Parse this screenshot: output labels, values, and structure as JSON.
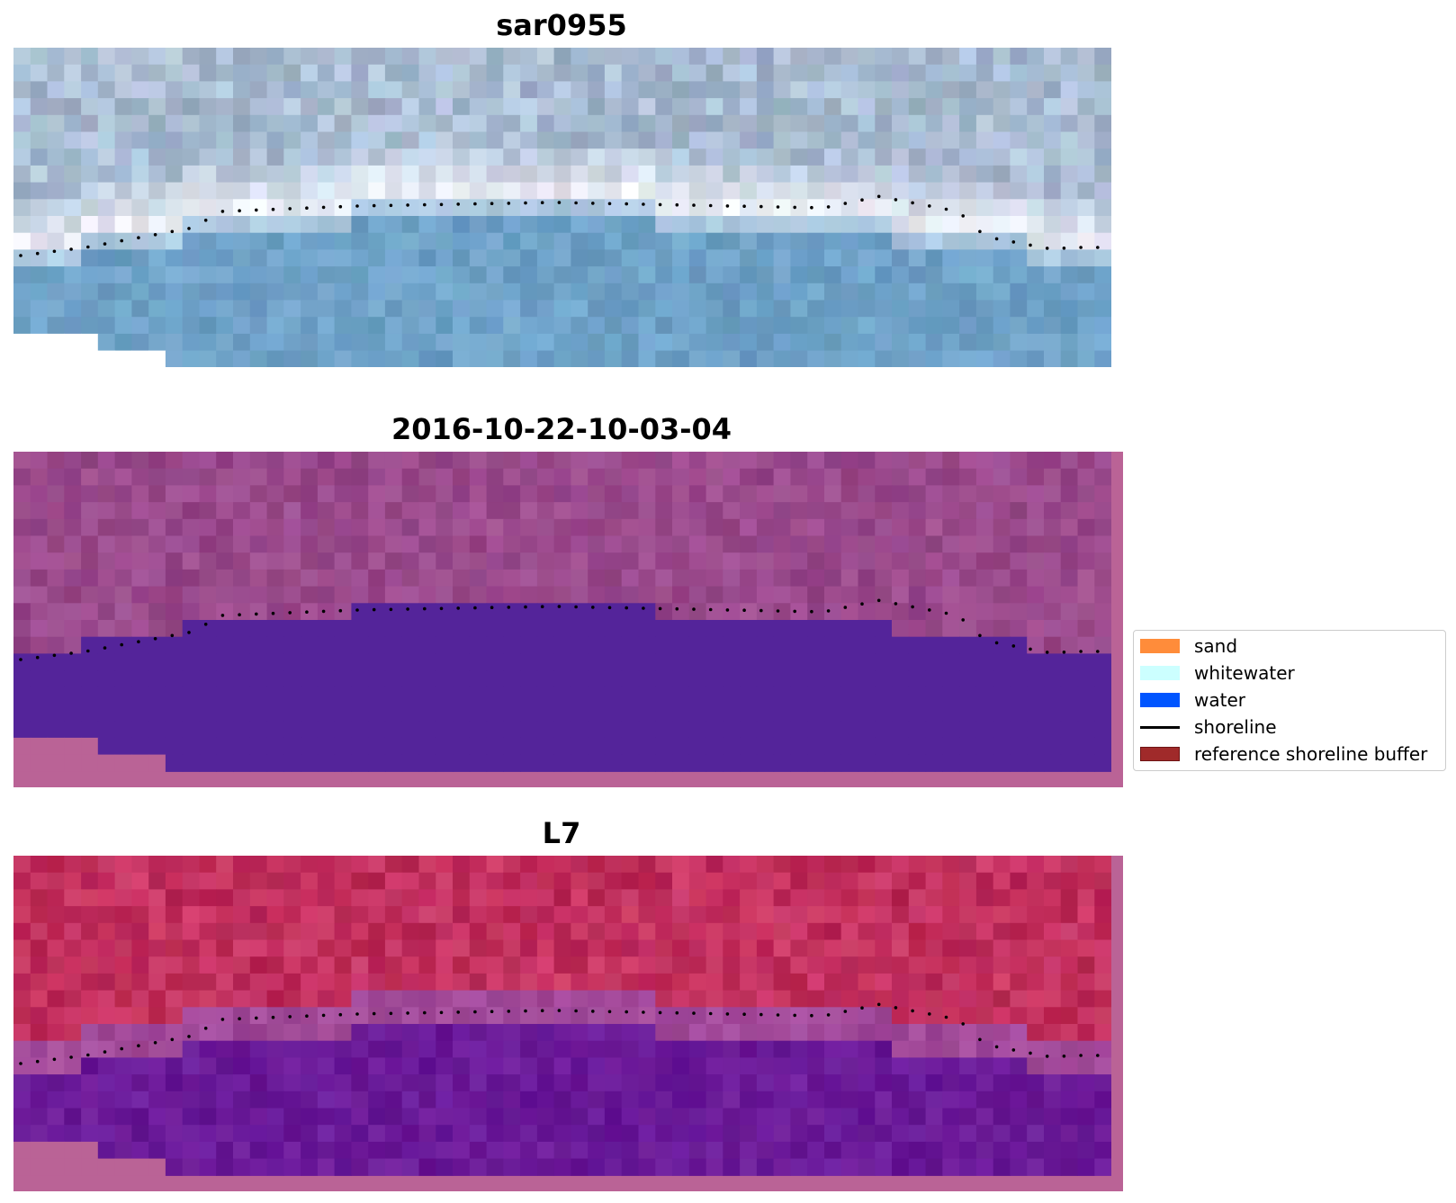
{
  "panels": [
    {
      "title": "sar0955",
      "style": "rgb"
    },
    {
      "title": "2016-10-22-10-03-04",
      "style": "classified"
    },
    {
      "title": "L7",
      "style": "false_color"
    }
  ],
  "legend": {
    "items": [
      {
        "label": "sand",
        "type": "patch",
        "color": "#ff8c3a"
      },
      {
        "label": "whitewater",
        "type": "patch",
        "color": "#ccffff"
      },
      {
        "label": "water",
        "type": "patch",
        "color": "#0055ff"
      },
      {
        "label": "shoreline",
        "type": "line",
        "color": "#000000"
      },
      {
        "label": "reference shoreline buffer",
        "type": "patch",
        "color": "#a02a2a"
      }
    ]
  },
  "colors": {
    "rgb_sky": "#a9bcd2",
    "rgb_beach": "#e9edf5",
    "rgb_water": "#6fa2c8",
    "classified_land": "#9a4a8c",
    "classified_water": "#54249a",
    "classified_nodata": "#ba6396",
    "falsecolor_land": "#c2305e",
    "falsecolor_transition": "#a24a9a",
    "falsecolor_water": "#6a1a98",
    "nodata_pink": "#ba6396"
  }
}
